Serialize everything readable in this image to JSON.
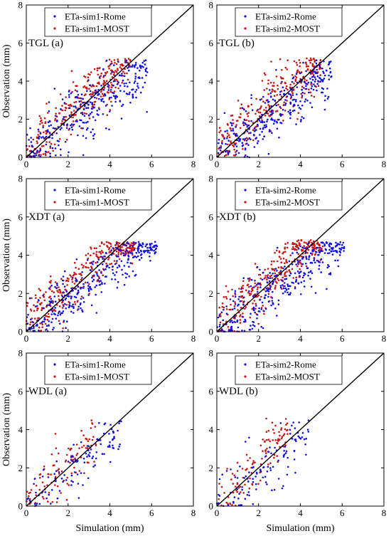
{
  "figure": {
    "xlabel": "Simulation (mm)",
    "ylabel": "Observation (mm)"
  },
  "colors": {
    "rome": "#1010e0",
    "most": "#c81414",
    "line": "#000000"
  },
  "chart_data": [
    {
      "type": "scatter",
      "panel_label": "TGL (a)",
      "xlim": [
        0,
        8
      ],
      "ylim": [
        0,
        8
      ],
      "xticks": [
        "0",
        "2",
        "4",
        "6",
        "8"
      ],
      "yticks": [
        "0",
        "2",
        "4",
        "6",
        "8"
      ],
      "show_xlabel": false,
      "show_ylabel": true,
      "legend": [
        "ETa-sim1-Rome",
        "ETa-sim1-MOST"
      ],
      "legend_position": "top-left",
      "one_to_one_line": true,
      "spread": {
        "rome_xmax": 5.8,
        "rome_ymax": 5.1,
        "most_xmax": 5.0,
        "most_ymax": 5.2,
        "n": 300
      }
    },
    {
      "type": "scatter",
      "panel_label": "TGL (b)",
      "xlim": [
        0,
        8
      ],
      "ylim": [
        0,
        8
      ],
      "xticks": [
        "0",
        "2",
        "4",
        "6",
        "8"
      ],
      "yticks": [
        "0",
        "2",
        "4",
        "6",
        "8"
      ],
      "show_xlabel": false,
      "show_ylabel": false,
      "legend": [
        "ETa-sim2-Rome",
        "ETa-sim2-MOST"
      ],
      "legend_position": "top-left",
      "one_to_one_line": true,
      "spread": {
        "rome_xmax": 5.5,
        "rome_ymax": 5.1,
        "most_xmax": 5.0,
        "most_ymax": 5.2,
        "n": 300
      }
    },
    {
      "type": "scatter",
      "panel_label": "XDT (a)",
      "xlim": [
        0,
        8
      ],
      "ylim": [
        0,
        8
      ],
      "xticks": [
        "0",
        "2",
        "4",
        "6",
        "8"
      ],
      "yticks": [
        "0",
        "2",
        "4",
        "6",
        "8"
      ],
      "show_xlabel": false,
      "show_ylabel": true,
      "legend": [
        "ETa-sim1-Rome",
        "ETa-sim1-MOST"
      ],
      "legend_position": "top-left",
      "one_to_one_line": true,
      "spread": {
        "rome_xmax": 6.3,
        "rome_ymax": 4.7,
        "most_xmax": 5.2,
        "most_ymax": 4.7,
        "n": 330
      }
    },
    {
      "type": "scatter",
      "panel_label": "XDT (b)",
      "xlim": [
        0,
        8
      ],
      "ylim": [
        0,
        8
      ],
      "xticks": [
        "0",
        "2",
        "4",
        "6",
        "8"
      ],
      "yticks": [
        "0",
        "2",
        "4",
        "6",
        "8"
      ],
      "show_xlabel": false,
      "show_ylabel": false,
      "legend": [
        "ETa-sim2-Rome",
        "ETa-sim2-MOST"
      ],
      "legend_position": "top-left",
      "one_to_one_line": true,
      "spread": {
        "rome_xmax": 6.1,
        "rome_ymax": 4.7,
        "most_xmax": 5.1,
        "most_ymax": 4.8,
        "n": 330
      }
    },
    {
      "type": "scatter",
      "panel_label": "WDL (a)",
      "xlim": [
        0,
        8
      ],
      "ylim": [
        0,
        8
      ],
      "xticks": [
        "0",
        "2",
        "4",
        "6",
        "8"
      ],
      "yticks": [
        "0",
        "2",
        "4",
        "6",
        "8"
      ],
      "show_xlabel": true,
      "show_ylabel": true,
      "legend": [
        "ETa-sim1-Rome",
        "ETa-sim1-MOST"
      ],
      "legend_position": "top-left",
      "one_to_one_line": true,
      "spread": {
        "rome_xmax": 4.6,
        "rome_ymax": 4.5,
        "most_xmax": 3.4,
        "most_ymax": 4.6,
        "n": 110
      }
    },
    {
      "type": "scatter",
      "panel_label": "WDL (b)",
      "xlim": [
        0,
        8
      ],
      "ylim": [
        0,
        8
      ],
      "xticks": [
        "0",
        "2",
        "4",
        "6",
        "8"
      ],
      "yticks": [
        "0",
        "2",
        "4",
        "6",
        "8"
      ],
      "show_xlabel": true,
      "show_ylabel": false,
      "legend": [
        "ETa-sim2-Rome",
        "ETa-sim2-MOST"
      ],
      "legend_position": "top-left",
      "one_to_one_line": true,
      "spread": {
        "rome_xmax": 4.4,
        "rome_ymax": 4.5,
        "most_xmax": 3.4,
        "most_ymax": 4.6,
        "n": 110
      }
    }
  ]
}
